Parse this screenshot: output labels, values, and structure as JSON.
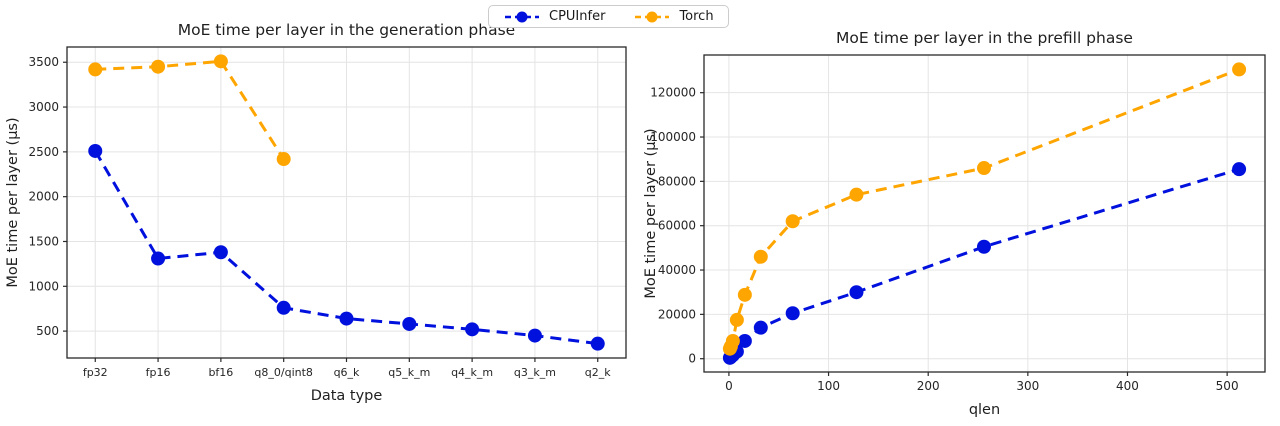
{
  "legend": {
    "items": [
      {
        "label": "CPUInfer",
        "color": "#0010dd"
      },
      {
        "label": "Torch",
        "color": "#ffa500"
      }
    ],
    "position": "top-center"
  },
  "chart_data": [
    {
      "type": "line",
      "title": "MoE time per layer in the generation phase",
      "xlabel": "Data type",
      "ylabel": "MoE time per layer (µs)",
      "categories": [
        "fp32",
        "fp16",
        "bf16",
        "q8_0/qint8",
        "q6_k",
        "q5_k_m",
        "q4_k_m",
        "q3_k_m",
        "q2_k"
      ],
      "ylim": [
        200,
        3670
      ],
      "yticks": [
        500,
        1000,
        1500,
        2000,
        2500,
        3000,
        3500
      ],
      "grid": true,
      "line_style": "dashed",
      "marker": "circle",
      "series": [
        {
          "name": "CPUInfer",
          "color": "#0010dd",
          "values": [
            2510,
            1310,
            1380,
            760,
            640,
            580,
            520,
            450,
            360
          ]
        },
        {
          "name": "Torch",
          "color": "#ffa500",
          "values": [
            3420,
            3450,
            3510,
            2420,
            null,
            null,
            null,
            null,
            null
          ]
        }
      ]
    },
    {
      "type": "line",
      "title": "MoE time per layer in the prefill phase",
      "xlabel": "qlen",
      "ylabel": "MoE time per layer (µs)",
      "x": [
        1,
        2,
        4,
        8,
        16,
        32,
        64,
        128,
        256,
        512
      ],
      "xlim": [
        -25,
        538
      ],
      "xticks": [
        0,
        100,
        200,
        300,
        400,
        500
      ],
      "ylim": [
        -6000,
        137000
      ],
      "yticks": [
        0,
        20000,
        40000,
        60000,
        80000,
        100000,
        120000
      ],
      "grid": true,
      "line_style": "dashed",
      "marker": "circle",
      "series": [
        {
          "name": "CPUInfer",
          "color": "#0010dd",
          "values": [
            400,
            800,
            1600,
            3200,
            8000,
            14000,
            20500,
            30000,
            50500,
            85500
          ]
        },
        {
          "name": "Torch",
          "color": "#ffa500",
          "values": [
            4500,
            5500,
            8000,
            17500,
            28800,
            46000,
            62000,
            74000,
            86000,
            130500
          ]
        }
      ]
    }
  ]
}
